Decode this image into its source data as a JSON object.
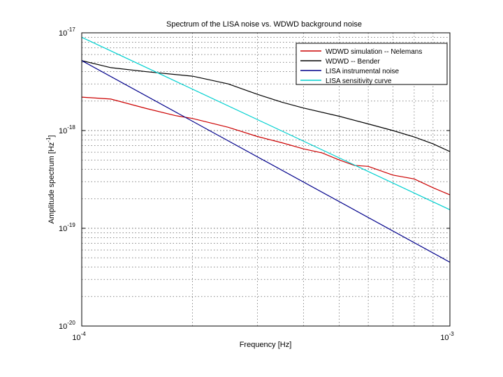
{
  "chart_data": {
    "type": "line",
    "title": "Spectrum of the LISA noise vs. WDWD background noise",
    "xlabel": "Frequency [Hz]",
    "ylabel_base": "Amplitude spectrum [Hz",
    "ylabel_exp": "-1",
    "ylabel_close": "]",
    "x_scale": "log",
    "y_scale": "log",
    "xlim": [
      0.0001,
      0.001
    ],
    "ylim": [
      1e-20,
      1e-17
    ],
    "grid": true,
    "legend_position": "top-right",
    "x_ticks": [
      {
        "base": "10",
        "exp": "-4"
      },
      {
        "base": "10",
        "exp": "-3"
      }
    ],
    "y_ticks": [
      {
        "base": "10",
        "exp": "-20"
      },
      {
        "base": "10",
        "exp": "-19"
      },
      {
        "base": "10",
        "exp": "-18"
      },
      {
        "base": "10",
        "exp": "-17"
      }
    ],
    "series": [
      {
        "name": "WDWD simulation -- Nelemans",
        "color": "#cc0000",
        "x": [
          0.0001,
          0.00012,
          0.00015,
          0.00018,
          0.0002,
          0.00025,
          0.0003,
          0.00035,
          0.0004,
          0.00045,
          0.0005,
          0.00055,
          0.0006,
          0.0007,
          0.0008,
          0.0009,
          0.001
        ],
        "y": [
          2.2e-18,
          2.1e-18,
          1.68e-18,
          1.42e-18,
          1.33e-18,
          1.08e-18,
          8.7e-19,
          7.5e-19,
          6.5e-19,
          5.9e-19,
          5e-19,
          4.4e-19,
          4.3e-19,
          3.5e-19,
          3.2e-19,
          2.6e-19,
          2.2e-19
        ]
      },
      {
        "name": "WDWD -- Bender",
        "color": "#000000",
        "x": [
          0.0001,
          0.00012,
          0.00015,
          0.0002,
          0.00025,
          0.0003,
          0.00035,
          0.0004,
          0.0005,
          0.0006,
          0.0007,
          0.0008,
          0.0009,
          0.001
        ],
        "y": [
          5.2e-18,
          4.4e-18,
          4e-18,
          3.6e-18,
          3e-18,
          2.35e-18,
          1.95e-18,
          1.7e-18,
          1.4e-18,
          1.17e-18,
          1e-18,
          8.6e-19,
          7.3e-19,
          6.1e-19
        ]
      },
      {
        "name": "LISA instrumental noise",
        "color": "#00008b",
        "x": [
          0.0001,
          0.001
        ],
        "y": [
          5.2e-18,
          4.5e-20
        ]
      },
      {
        "name": "LISA sensitivity curve",
        "color": "#00d0d0",
        "x": [
          0.0001,
          0.001
        ],
        "y": [
          9e-18,
          1.55e-19
        ]
      }
    ]
  }
}
